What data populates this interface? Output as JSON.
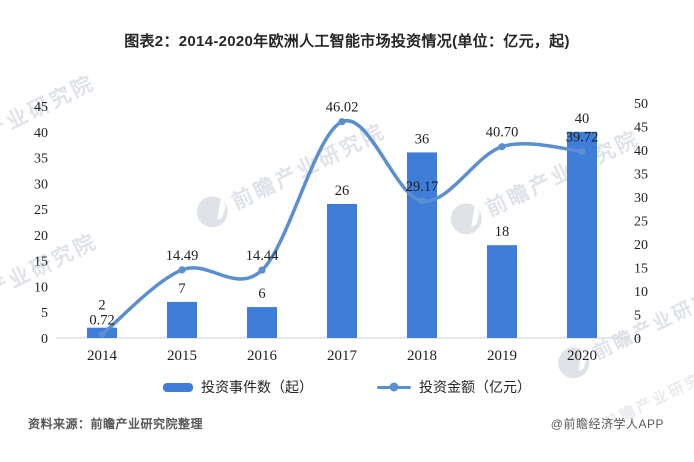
{
  "page": {
    "title": "图表2：2014-2020年欧洲人工智能市场投资情况(单位：亿元，起)",
    "source": "资料来源：前瞻产业研究院整理",
    "attribution": "@前瞻经济学人APP",
    "watermark": {
      "text": "前瞻产业研究院"
    }
  },
  "legend": [
    {
      "label": "投资事件数（起）",
      "color": "#3e7ed8",
      "type": "bar"
    },
    {
      "label": "投资金额（亿元）",
      "color": "#5a8fd0",
      "type": "line"
    }
  ],
  "chart_data": {
    "type": "bar+line",
    "title": "图表2：2014-2020年欧洲人工智能市场投资情况(单位：亿元，起)",
    "categories": [
      "2014",
      "2015",
      "2016",
      "2017",
      "2018",
      "2019",
      "2020"
    ],
    "series": [
      {
        "name": "投资事件数（起）",
        "type": "bar",
        "axis": "left",
        "color": "#3e7ed8",
        "values": [
          2,
          7,
          6,
          26,
          36,
          18,
          40
        ],
        "labels": [
          "2",
          "7",
          "6",
          "26",
          "36",
          "18",
          "40"
        ],
        "label_dy": [
          -18,
          -9,
          -9,
          -9,
          -9,
          -9,
          -9
        ]
      },
      {
        "name": "投资金额（亿元）",
        "type": "line",
        "axis": "right",
        "color": "#5a8fd0",
        "values": [
          0.72,
          14.49,
          14.44,
          46.02,
          29.17,
          40.7,
          39.72
        ],
        "labels": [
          "0.72",
          "14.49",
          "14.44",
          "46.02",
          "29.17",
          "40.70",
          "39.72"
        ]
      }
    ],
    "left_axis": {
      "min": 0,
      "max": 45,
      "step": 5,
      "ticks": [
        "0",
        "5",
        "10",
        "15",
        "20",
        "25",
        "30",
        "35",
        "40",
        "45"
      ]
    },
    "right_axis": {
      "min": 0,
      "max": 50,
      "step": 5,
      "ticks": [
        "0",
        "5",
        "10",
        "15",
        "20",
        "25",
        "30",
        "35",
        "40",
        "45",
        "50"
      ]
    },
    "grid": false,
    "legend_position": "bottom",
    "axis_line_color": "#d9d9d9",
    "label_color": "#1f1f1f"
  }
}
